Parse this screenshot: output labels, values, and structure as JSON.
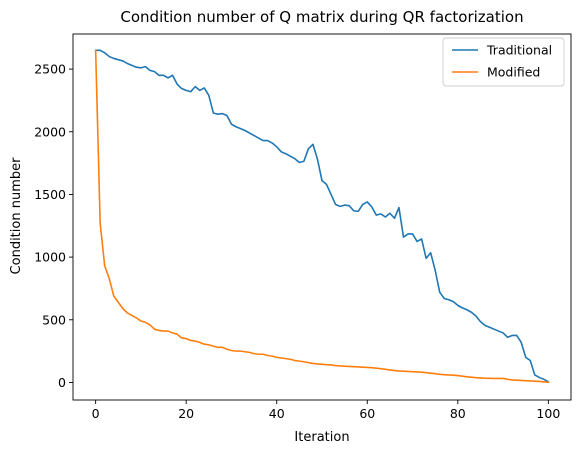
{
  "chart_data": {
    "type": "line",
    "title": "Condition number of Q matrix during QR factorization",
    "xlabel": "Iteration",
    "ylabel": "Condition number",
    "xlim": [
      -5,
      105
    ],
    "ylim": [
      -140,
      2780
    ],
    "xticks": [
      0,
      20,
      40,
      60,
      80,
      100
    ],
    "yticks": [
      0,
      500,
      1000,
      1500,
      2000,
      2500
    ],
    "grid": false,
    "legend_position": "top-right",
    "series": [
      {
        "name": "Traditional",
        "color": "#1f77b4",
        "x": [
          0,
          1,
          2,
          3,
          4,
          5,
          6,
          7,
          8,
          9,
          10,
          11,
          12,
          13,
          14,
          15,
          16,
          17,
          18,
          19,
          20,
          21,
          22,
          23,
          24,
          25,
          26,
          27,
          28,
          29,
          30,
          31,
          32,
          33,
          34,
          35,
          36,
          37,
          38,
          39,
          40,
          41,
          42,
          43,
          44,
          45,
          46,
          47,
          48,
          49,
          50,
          51,
          52,
          53,
          54,
          55,
          56,
          57,
          58,
          59,
          60,
          61,
          62,
          63,
          64,
          65,
          66,
          67,
          68,
          69,
          70,
          71,
          72,
          73,
          74,
          75,
          76,
          77,
          78,
          79,
          80,
          81,
          82,
          83,
          84,
          85,
          86,
          87,
          88,
          89,
          90,
          91,
          92,
          93,
          94,
          95,
          96,
          97,
          98,
          99,
          100
        ],
        "y": [
          2650,
          2650,
          2630,
          2600,
          2585,
          2575,
          2565,
          2545,
          2530,
          2515,
          2510,
          2520,
          2490,
          2480,
          2450,
          2450,
          2430,
          2450,
          2380,
          2345,
          2330,
          2320,
          2360,
          2330,
          2350,
          2290,
          2150,
          2140,
          2145,
          2130,
          2060,
          2040,
          2025,
          2010,
          1990,
          1970,
          1950,
          1930,
          1930,
          1910,
          1880,
          1840,
          1825,
          1805,
          1785,
          1755,
          1765,
          1865,
          1900,
          1780,
          1610,
          1580,
          1500,
          1420,
          1405,
          1415,
          1410,
          1370,
          1365,
          1420,
          1440,
          1400,
          1335,
          1345,
          1320,
          1350,
          1310,
          1395,
          1160,
          1185,
          1185,
          1125,
          1145,
          990,
          1035,
          895,
          720,
          670,
          660,
          645,
          615,
          595,
          580,
          560,
          530,
          485,
          455,
          440,
          425,
          410,
          395,
          360,
          375,
          375,
          320,
          200,
          175,
          60,
          40,
          25,
          5
        ]
      },
      {
        "name": "Modified",
        "color": "#ff7f0e",
        "x": [
          0,
          1,
          2,
          3,
          4,
          5,
          6,
          7,
          8,
          9,
          10,
          11,
          12,
          13,
          14,
          15,
          16,
          17,
          18,
          19,
          20,
          21,
          22,
          23,
          24,
          25,
          26,
          27,
          28,
          29,
          30,
          31,
          32,
          33,
          34,
          35,
          36,
          37,
          38,
          39,
          40,
          41,
          42,
          43,
          44,
          45,
          46,
          47,
          48,
          49,
          50,
          51,
          52,
          53,
          54,
          55,
          56,
          57,
          58,
          59,
          60,
          61,
          62,
          63,
          64,
          65,
          66,
          67,
          68,
          69,
          70,
          71,
          72,
          73,
          74,
          75,
          76,
          77,
          78,
          79,
          80,
          81,
          82,
          83,
          84,
          85,
          86,
          87,
          88,
          89,
          90,
          91,
          92,
          93,
          94,
          95,
          96,
          97,
          98,
          99,
          100
        ],
        "y": [
          2650,
          1270,
          930,
          830,
          690,
          640,
          590,
          555,
          535,
          515,
          490,
          480,
          460,
          425,
          415,
          410,
          410,
          395,
          385,
          355,
          350,
          335,
          330,
          320,
          305,
          300,
          290,
          280,
          280,
          265,
          255,
          250,
          250,
          245,
          240,
          230,
          225,
          225,
          215,
          210,
          200,
          195,
          190,
          185,
          175,
          170,
          165,
          158,
          152,
          148,
          145,
          142,
          140,
          135,
          132,
          130,
          128,
          126,
          124,
          122,
          120,
          118,
          114,
          110,
          105,
          100,
          95,
          92,
          90,
          88,
          86,
          84,
          82,
          78,
          74,
          70,
          65,
          62,
          60,
          58,
          55,
          50,
          45,
          42,
          38,
          36,
          34,
          33,
          32,
          32,
          32,
          25,
          20,
          18,
          16,
          14,
          12,
          10,
          8,
          5,
          2
        ]
      }
    ]
  }
}
